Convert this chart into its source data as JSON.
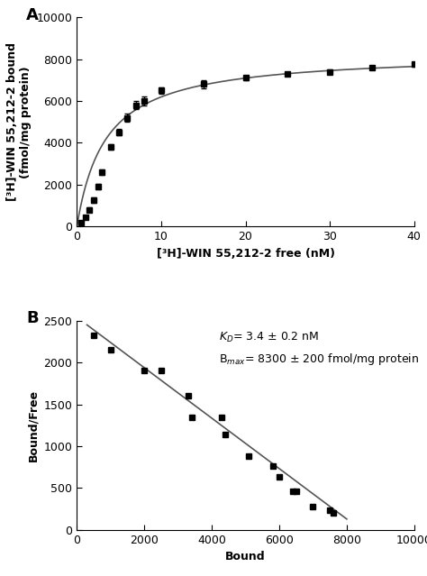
{
  "panel_A": {
    "label": "A",
    "xlabel": "[³H]-WIN 55,212-2 free (nM)",
    "ylabel": "[³H]-WIN 55,212-2 bound\n(fmol/mg protein)",
    "xlim": [
      0,
      40
    ],
    "ylim": [
      0,
      10000
    ],
    "xticks": [
      0,
      10,
      20,
      30,
      40
    ],
    "yticks": [
      0,
      2000,
      4000,
      6000,
      8000,
      10000
    ],
    "Bmax": 8300,
    "Kd": 3.4,
    "data_x": [
      0.5,
      1.0,
      1.5,
      2.0,
      2.5,
      3.0,
      4.0,
      5.0,
      6.0,
      7.0,
      8.0,
      10.0,
      15.0,
      20.0,
      25.0,
      30.0,
      35.0,
      40.0
    ],
    "data_y": [
      200,
      450,
      800,
      1250,
      1900,
      2600,
      3800,
      4500,
      5200,
      5800,
      6000,
      6500,
      6800,
      7100,
      7300,
      7400,
      7600,
      7750
    ],
    "data_yerr": [
      80,
      80,
      100,
      120,
      120,
      130,
      140,
      150,
      180,
      200,
      200,
      150,
      180,
      120,
      100,
      100,
      100,
      120
    ]
  },
  "panel_B": {
    "label": "B",
    "xlabel": "Bound",
    "ylabel": "Bound/Free",
    "xlim": [
      0,
      10000
    ],
    "ylim": [
      0,
      2500
    ],
    "xticks": [
      0,
      2000,
      4000,
      6000,
      8000,
      10000
    ],
    "yticks": [
      0,
      500,
      1000,
      1500,
      2000,
      2500
    ],
    "annotation": "$K_D$= 3.4 ± 0.2 nM\nB$_{max}$= 8300 ± 200 fmol/mg protein",
    "data_x": [
      500,
      1000,
      2000,
      2500,
      3300,
      3400,
      4300,
      4400,
      5100,
      5800,
      6000,
      6400,
      6500,
      7000,
      7500,
      7600
    ],
    "data_y": [
      2330,
      2150,
      1900,
      1900,
      1600,
      1340,
      1340,
      1140,
      880,
      760,
      630,
      460,
      460,
      280,
      240,
      200
    ],
    "line_x": [
      300,
      8000
    ],
    "line_y": [
      2450,
      130
    ]
  },
  "figure_bg": "#ffffff",
  "line_color": "#555555",
  "marker_color": "#000000",
  "marker_size": 4,
  "font_size": 9,
  "label_fontsize": 10
}
